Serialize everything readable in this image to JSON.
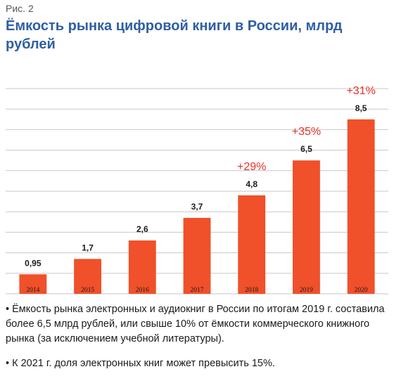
{
  "figure_label": "Рис. 2",
  "title": "Ёмкость рынка цифровой книги в России, млрд рублей",
  "colors": {
    "bar": "#f0502a",
    "growth": "#e8312a",
    "title": "#2e5fa3",
    "gridline": "#c8c8c8"
  },
  "chart_data": {
    "type": "bar",
    "categories": [
      "2014",
      "2015",
      "2016",
      "2017",
      "2018",
      "2019",
      "2020"
    ],
    "values": [
      0.95,
      1.7,
      2.6,
      3.7,
      4.8,
      6.5,
      8.5
    ],
    "value_labels": [
      "0,95",
      "1,7",
      "2,6",
      "3,7",
      "4,8",
      "6,5",
      "8,5"
    ],
    "growth_labels": [
      "",
      "",
      "",
      "",
      "+29%",
      "+35%",
      "+31%"
    ],
    "title": "Ёмкость рынка цифровой книги в России, млрд рублей",
    "xlabel": "",
    "ylabel": "",
    "ylim": [
      0,
      10
    ],
    "grid": true,
    "legend": "none"
  },
  "notes": [
    "• Ёмкость рынка электронных и аудиокниг в России по итогам 2019 г. составила более 6,5 млрд рублей, или свыше 10% от ёмкости коммерческого книжного рынка (за исключением учебной литературы).",
    "• К 2021 г. доля электронных книг может превысить 15%."
  ]
}
